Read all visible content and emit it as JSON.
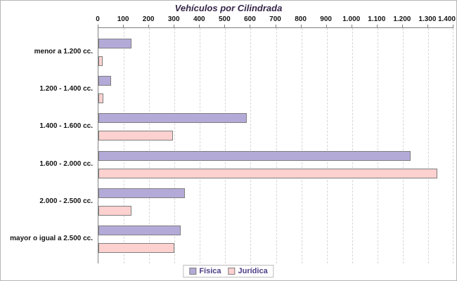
{
  "chart_data": {
    "type": "bar",
    "orientation": "horizontal",
    "title": "Vehículos por Cilindrada",
    "categories": [
      "menor a 1.200 cc.",
      "1.200 - 1.400 cc.",
      "1.400 - 1.600 cc.",
      "1.600 - 2.000 cc.",
      "2.000 - 2.500 cc.",
      "mayor o igual a 2.500 cc."
    ],
    "series": [
      {
        "name": "Física",
        "color": "#b4aad8",
        "values": [
          130,
          50,
          585,
          1230,
          340,
          325
        ]
      },
      {
        "name": "Jurídica",
        "color": "#fcd1cf",
        "values": [
          18,
          20,
          295,
          1335,
          130,
          300
        ]
      }
    ],
    "xlim": [
      0,
      1400
    ],
    "x_ticks": [
      0,
      100,
      200,
      300,
      400,
      500,
      600,
      700,
      800,
      900,
      1000,
      1100,
      1200,
      1300,
      1400
    ],
    "x_tick_labels": [
      "0",
      "100",
      "200",
      "300",
      "400",
      "500",
      "600",
      "700",
      "800",
      "900",
      "1.000",
      "1.100",
      "1.200",
      "1.300",
      "1.400"
    ],
    "grid": "vertical-dashed",
    "legend_position": "bottom-center"
  },
  "colors": {
    "fisica_fill": "#b4aad8",
    "juridica_fill": "#fcd1cf",
    "bar_border": "#7f7f7f",
    "axis_line": "#808080",
    "gridline": "#d6d6d6",
    "title_text": "#352647",
    "legend_text": "#4d3d85",
    "tick_text": "#141414",
    "canvas_border": "#b5b5b5"
  }
}
